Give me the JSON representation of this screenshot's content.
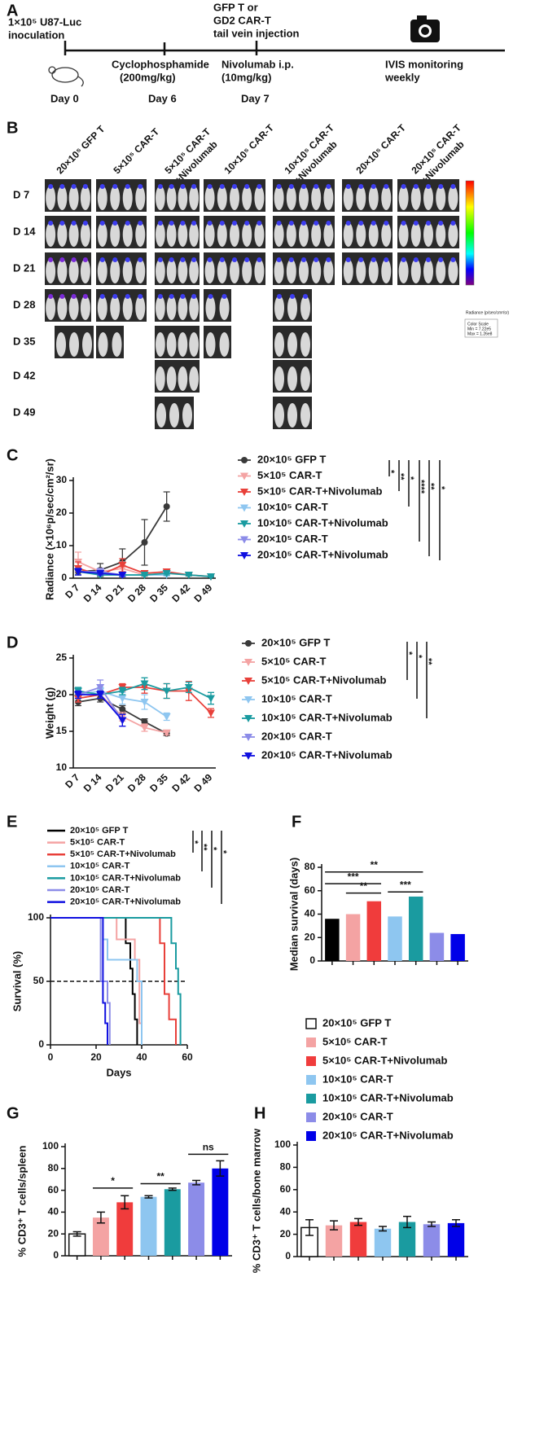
{
  "panel_a": {
    "letter": "A",
    "inoculation": [
      "1×10⁵ U87-Luc",
      "inoculation"
    ],
    "injection": [
      "GFP T or",
      "GD2 CAR-T",
      "tail vein injection"
    ],
    "cyclophosphamide": [
      "Cyclophosphamide",
      "(200mg/kg)"
    ],
    "nivolumab": [
      "Nivolumab i.p.",
      "(10mg/kg)"
    ],
    "monitoring": [
      "IVIS monitoring",
      "weekly"
    ],
    "days": [
      "Day 0",
      "Day 6",
      "Day 7"
    ]
  },
  "panel_b": {
    "letter": "B",
    "groups": [
      [
        "20×10⁵ GFP T"
      ],
      [
        "5×10⁵ CAR-T"
      ],
      [
        "5×10⁵ CAR-T",
        "+Nivolumab"
      ],
      [
        "10×10⁵ CAR-T"
      ],
      [
        "10×10⁵ CAR-T",
        "+Nivolumab"
      ],
      [
        "20×10⁵ CAR-T"
      ],
      [
        "20×10⁵ CAR-T",
        "+Nivolumab"
      ]
    ],
    "rows": [
      "D 7",
      "D 14",
      "D 21",
      "D 28",
      "D 35",
      "D 42",
      "D 49"
    ],
    "colorbar": {
      "title": "Radiance (p/sec/cm²/sr)",
      "scale": [
        "Color Scale",
        "Min = 7.22e5",
        "Max = 1.26e8"
      ]
    }
  },
  "chart_data": [
    {
      "type": "line",
      "panel": "C",
      "ylabel": "Radiance (×10⁶p/sec/cm²/sr)",
      "categories": [
        "D 7",
        "D 14",
        "D 21",
        "D 28",
        "D 35",
        "D 42",
        "D 49"
      ],
      "ylim": [
        0,
        30
      ],
      "yticks": [
        0,
        10,
        20,
        30
      ],
      "series": [
        {
          "name": "20×10⁵ GFP T",
          "color": "#3a3a3a",
          "marker": "circle",
          "values": [
            2,
            2.5,
            5,
            11,
            22,
            null,
            null
          ],
          "errors": [
            1,
            2,
            4,
            7,
            4.5,
            null,
            null
          ]
        },
        {
          "name": "5×10⁵ CAR-T",
          "color": "#f4a3a3",
          "marker": "triangle",
          "values": [
            5,
            2,
            3,
            1,
            1.5,
            null,
            null
          ],
          "errors": [
            3,
            1,
            2,
            0.5,
            0.5,
            null,
            null
          ]
        },
        {
          "name": "5×10⁵ CAR-T+Nivolumab",
          "color": "#e8403a",
          "marker": "triangle",
          "values": [
            3,
            1,
            4,
            1.5,
            2,
            1,
            0.5
          ],
          "errors": [
            2,
            0.5,
            2,
            0.5,
            0.5,
            0.3,
            0.2
          ]
        },
        {
          "name": "10×10⁵ CAR-T",
          "color": "#8ec6f0",
          "marker": "triangle",
          "values": [
            2,
            1.5,
            1,
            1,
            1,
            null,
            null
          ],
          "errors": [
            1,
            0.5,
            0.5,
            0.3,
            0.3,
            null,
            null
          ]
        },
        {
          "name": "10×10⁵ CAR-T+Nivolumab",
          "color": "#1a9ba0",
          "marker": "triangle",
          "values": [
            2,
            1,
            1,
            1,
            1.5,
            1,
            0.5
          ],
          "errors": [
            1,
            0.5,
            0.5,
            0.3,
            0.5,
            0.3,
            0.2
          ]
        },
        {
          "name": "20×10⁵ CAR-T",
          "color": "#8c8ce8",
          "marker": "triangle",
          "values": [
            2,
            2,
            1,
            null,
            null,
            null,
            null
          ],
          "errors": [
            1,
            1,
            0.5,
            null,
            null,
            null,
            null
          ]
        },
        {
          "name": "20×10⁵ CAR-T+Nivolumab",
          "color": "#1010e0",
          "marker": "triangle",
          "values": [
            2,
            1.5,
            1,
            null,
            null,
            null,
            null
          ],
          "errors": [
            1,
            0.5,
            0.5,
            null,
            null,
            null,
            null
          ]
        }
      ],
      "significance": [
        "*",
        "**",
        "*",
        "****",
        "**",
        "*"
      ]
    },
    {
      "type": "line",
      "panel": "D",
      "ylabel": "Weight (g)",
      "categories": [
        "D 7",
        "D 14",
        "D 21",
        "D 28",
        "D 35",
        "D 42",
        "D 49"
      ],
      "ylim": [
        10,
        25
      ],
      "yticks": [
        10,
        15,
        20,
        25
      ],
      "series": [
        {
          "name": "20×10⁵ GFP T",
          "color": "#3a3a3a",
          "marker": "circle",
          "values": [
            19,
            19.5,
            18,
            16.3,
            14.7,
            null,
            null
          ],
          "errors": [
            0.5,
            0.5,
            0.5,
            0.4,
            0.3,
            null,
            null
          ]
        },
        {
          "name": "5×10⁵ CAR-T",
          "color": "#f4a3a3",
          "marker": "triangle",
          "values": [
            19.5,
            20,
            17,
            15.5,
            14.8,
            null,
            null
          ],
          "errors": [
            0.5,
            0.5,
            0.6,
            0.5,
            0.3,
            null,
            null
          ]
        },
        {
          "name": "5×10⁵ CAR-T+Nivolumab",
          "color": "#e8403a",
          "marker": "triangle",
          "values": [
            19.5,
            20,
            21,
            21,
            20.5,
            20.5,
            17.5
          ],
          "errors": [
            0.5,
            0.5,
            0.5,
            0.8,
            1,
            1.3,
            0.6
          ]
        },
        {
          "name": "10×10⁵ CAR-T",
          "color": "#8ec6f0",
          "marker": "triangle",
          "values": [
            20,
            20.5,
            19.5,
            19,
            17,
            null,
            null
          ],
          "errors": [
            0.5,
            0.5,
            0.8,
            1,
            0.5,
            null,
            null
          ]
        },
        {
          "name": "10×10⁵ CAR-T+Nivolumab",
          "color": "#1a9ba0",
          "marker": "triangle",
          "values": [
            20.5,
            20,
            20.5,
            21.5,
            20.5,
            21,
            19.5
          ],
          "errors": [
            0.5,
            0.5,
            0.5,
            0.8,
            1,
            0.7,
            0.8
          ]
        },
        {
          "name": "20×10⁵ CAR-T",
          "color": "#8c8ce8",
          "marker": "triangle",
          "values": [
            20,
            21,
            16.5,
            null,
            null,
            null,
            null
          ],
          "errors": [
            0.5,
            1,
            0.8,
            null,
            null,
            null,
            null
          ]
        },
        {
          "name": "20×10⁵ CAR-T+Nivolumab",
          "color": "#1010e0",
          "marker": "triangle",
          "values": [
            20,
            20,
            16.5,
            null,
            null,
            null,
            null
          ],
          "errors": [
            0.5,
            0.5,
            0.8,
            null,
            null,
            null,
            null
          ]
        }
      ],
      "significance": [
        "*",
        "*",
        "**"
      ]
    },
    {
      "type": "step",
      "panel": "E",
      "xlabel": "Days",
      "ylabel": "Survival (%)",
      "xlim": [
        0,
        60
      ],
      "xticks": [
        0,
        20,
        40,
        60
      ],
      "ylim": [
        0,
        100
      ],
      "yticks": [
        0,
        50,
        100
      ],
      "hline": 50,
      "series": [
        {
          "name": "20×10⁵ GFP T",
          "color": "#000000",
          "x": [
            0,
            33,
            35,
            36,
            37,
            38
          ],
          "values": [
            100,
            80,
            60,
            40,
            20,
            0
          ]
        },
        {
          "name": "5×10⁵ CAR-T",
          "color": "#f4a3a3",
          "x": [
            0,
            29,
            37,
            39,
            40
          ],
          "values": [
            100,
            83,
            67,
            17,
            0
          ]
        },
        {
          "name": "5×10⁵ CAR-T+Nivolumab",
          "color": "#e8403a",
          "x": [
            0,
            48,
            50,
            52,
            55
          ],
          "values": [
            100,
            80,
            40,
            20,
            0
          ]
        },
        {
          "name": "10×10⁵ CAR-T",
          "color": "#8ec6f0",
          "x": [
            0,
            23,
            25,
            38,
            40
          ],
          "values": [
            100,
            83,
            67,
            50,
            0
          ]
        },
        {
          "name": "10×10⁵ CAR-T+Nivolumab",
          "color": "#1a9ba0",
          "x": [
            0,
            53,
            55,
            56,
            57
          ],
          "values": [
            100,
            80,
            60,
            40,
            0
          ]
        },
        {
          "name": "20×10⁵ CAR-T",
          "color": "#8c8ce8",
          "x": [
            0,
            22,
            25,
            26
          ],
          "values": [
            100,
            50,
            33,
            0
          ]
        },
        {
          "name": "20×10⁵ CAR-T+Nivolumab",
          "color": "#1010e0",
          "x": [
            0,
            23,
            24,
            25
          ],
          "values": [
            100,
            33,
            17,
            0
          ]
        }
      ],
      "significance": [
        "*",
        "**",
        "*",
        "*"
      ]
    },
    {
      "type": "bar",
      "panel": "F",
      "ylabel": "Median survival (days)",
      "ylim": [
        0,
        80
      ],
      "yticks": [
        0,
        20,
        40,
        60,
        80
      ],
      "values": [
        36,
        40,
        51,
        38,
        55,
        24,
        23
      ],
      "colors": [
        "#000000",
        "#f4a3a3",
        "#f03c3c",
        "#8ec6f0",
        "#1a9ba0",
        "#8c8ce8",
        "#0000e8"
      ],
      "significance": [
        "**",
        "***",
        "**",
        "***"
      ]
    },
    {
      "type": "bar",
      "panel": "G",
      "ylabel": "% CD3⁺ T cells/spleen",
      "ylim": [
        0,
        100
      ],
      "yticks": [
        0,
        20,
        40,
        60,
        80,
        100
      ],
      "series": [
        {
          "name": "20×10⁵ GFP T",
          "color": "#ffffff",
          "values": [
            20
          ],
          "errors": [
            2
          ]
        },
        {
          "name": "5×10⁵ CAR-T",
          "color": "#f4a3a3",
          "values": [
            35
          ],
          "errors": [
            5
          ]
        },
        {
          "name": "5×10⁵ CAR-T+Nivolumab",
          "color": "#f03c3c",
          "values": [
            49
          ],
          "errors": [
            6
          ]
        },
        {
          "name": "10×10⁵ CAR-T",
          "color": "#8ec6f0",
          "values": [
            54
          ],
          "errors": [
            1
          ]
        },
        {
          "name": "10×10⁵ CAR-T+Nivolumab",
          "color": "#1a9ba0",
          "values": [
            61
          ],
          "errors": [
            1
          ]
        },
        {
          "name": "20×10⁵ CAR-T",
          "color": "#8c8ce8",
          "values": [
            67
          ],
          "errors": [
            2
          ]
        },
        {
          "name": "20×10⁵ CAR-T+Nivolumab",
          "color": "#0000e8",
          "values": [
            80
          ],
          "errors": [
            7
          ]
        }
      ],
      "significance": [
        "*",
        "**",
        "ns"
      ]
    },
    {
      "type": "bar",
      "panel": "H",
      "ylabel": "% CD3⁺ T cells/bone marrow",
      "ylim": [
        0,
        100
      ],
      "yticks": [
        0,
        20,
        40,
        60,
        80,
        100
      ],
      "values": [
        26,
        28,
        31,
        25,
        31,
        29,
        30
      ],
      "errors": [
        7,
        4,
        3,
        2,
        5,
        2,
        3
      ],
      "colors": [
        "#ffffff",
        "#f4a3a3",
        "#f03c3c",
        "#8ec6f0",
        "#1a9ba0",
        "#8c8ce8",
        "#0000e8"
      ]
    }
  ]
}
